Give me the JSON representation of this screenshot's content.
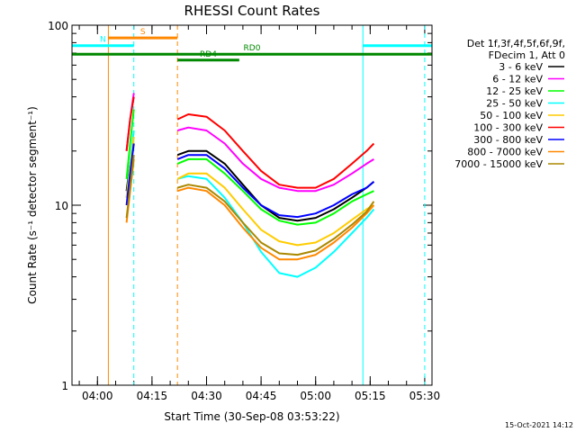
{
  "chart_data": {
    "type": "line",
    "title": "RHESSI Count Rates",
    "xlabel": "Start Time (30-Sep-08 03:53:22)",
    "ylabel": "Count Rate (s⁻¹ detector segment⁻¹)",
    "y_scale": "log",
    "ylim": [
      1,
      100
    ],
    "y_ticks": [
      "1",
      "10",
      "100"
    ],
    "x_range": [
      "03:53",
      "05:32"
    ],
    "x_ticks": [
      "04:00",
      "04:15",
      "04:30",
      "04:45",
      "05:00",
      "05:15",
      "05:30"
    ],
    "legend_header": [
      "Det 1f,3f,4f,5f,6f,9f,",
      "FDecim 1, Att 0"
    ],
    "legend_position": "right",
    "footer_date": "15-Oct-2021 14:12",
    "x": [
      "04:08",
      "04:09",
      "04:10",
      "04:22",
      "04:25",
      "04:30",
      "04:35",
      "04:40",
      "04:45",
      "04:50",
      "04:55",
      "05:00",
      "05:05",
      "05:10",
      "05:14",
      "05:16"
    ],
    "gaps_after_index": [
      2
    ],
    "series": [
      {
        "name": "3 - 6 keV",
        "color": "#000000",
        "values": [
          12,
          17,
          22,
          19,
          20,
          20,
          17,
          13,
          10,
          8.5,
          8.2,
          8.5,
          9.5,
          11,
          12.5,
          13.5
        ]
      },
      {
        "name": "6 - 12 keV",
        "color": "#ff00ff",
        "values": [
          20,
          30,
          42,
          26,
          27,
          26,
          22,
          17,
          14,
          12.5,
          12,
          12,
          13,
          15,
          17,
          18
        ]
      },
      {
        "name": "12 - 25 keV",
        "color": "#00ff00",
        "values": [
          14,
          22,
          34,
          17,
          18,
          18,
          15,
          12,
          9.5,
          8.2,
          7.8,
          8,
          9,
          10.5,
          11.5,
          12
        ]
      },
      {
        "name": "25 - 50 keV",
        "color": "#00ffff",
        "values": [
          11,
          17,
          26,
          14,
          14.5,
          14,
          11,
          8,
          5.5,
          4.2,
          4,
          4.5,
          5.5,
          7,
          8.5,
          9.5
        ]
      },
      {
        "name": "50 - 100 keV",
        "color": "#ffcc00",
        "values": [
          11,
          16,
          24,
          14,
          15,
          15,
          12.5,
          9.5,
          7.3,
          6.3,
          6,
          6.2,
          7,
          8.3,
          9.5,
          10
        ]
      },
      {
        "name": "100 - 300 keV",
        "color": "#ff0000",
        "values": [
          20,
          30,
          40,
          30,
          32,
          31,
          26,
          20,
          15.5,
          13,
          12.5,
          12.5,
          14,
          17,
          20,
          22
        ]
      },
      {
        "name": "300 - 800 keV",
        "color": "#0000ff",
        "values": [
          10,
          15,
          22,
          18,
          19,
          19,
          16,
          12.5,
          10,
          8.8,
          8.6,
          9,
          10,
          11.5,
          12.5,
          13.5
        ]
      },
      {
        "name": "800 - 7000 keV",
        "color": "#ff8800",
        "values": [
          8,
          12,
          18,
          12,
          12.5,
          12,
          10,
          7.5,
          5.8,
          5,
          5,
          5.3,
          6.2,
          7.5,
          9,
          10
        ]
      },
      {
        "name": "7000 - 15000 keV",
        "color": "#aa8800",
        "values": [
          8.5,
          12.5,
          19,
          12.5,
          13,
          12.5,
          10.5,
          8,
          6.2,
          5.4,
          5.3,
          5.6,
          6.5,
          7.8,
          9.2,
          10.5
        ]
      }
    ],
    "state_bars": [
      {
        "label": "S",
        "color": "#ff8800",
        "level": 85,
        "start": "04:03",
        "end": "04:22"
      },
      {
        "label": "N",
        "color": "#00ffff",
        "level": 77,
        "start": "03:53",
        "end": "04:10"
      },
      {
        "label": "",
        "color": "#00ffff",
        "level": 77,
        "start": "05:13",
        "end": "05:32"
      },
      {
        "label": "RD0",
        "color": "#008800",
        "level": 69,
        "start": "03:53",
        "end": "05:32"
      },
      {
        "label": "RD4",
        "color": "#008800",
        "level": 64,
        "start": "04:22",
        "end": "04:39"
      }
    ],
    "vertical_lines": [
      {
        "time": "03:53",
        "color": "#00ffff",
        "style": "solid"
      },
      {
        "time": "04:03",
        "color": "#ff8800",
        "style": "solid"
      },
      {
        "time": "04:10",
        "color": "#00ffff",
        "style": "dashed"
      },
      {
        "time": "04:22",
        "color": "#ff8800",
        "style": "dashed"
      },
      {
        "time": "05:13",
        "color": "#00ffff",
        "style": "solid"
      },
      {
        "time": "05:30",
        "color": "#00ffff",
        "style": "dashed"
      }
    ],
    "grid": false
  }
}
